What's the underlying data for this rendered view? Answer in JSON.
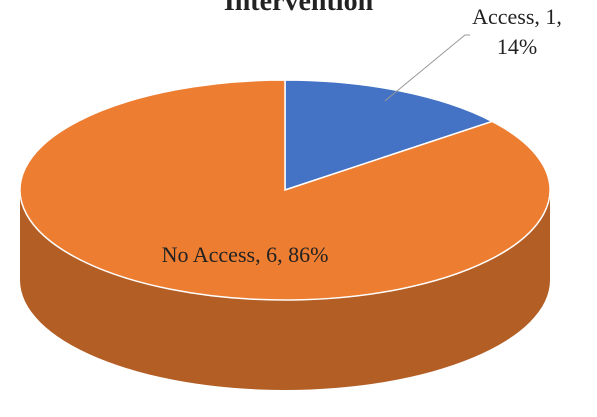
{
  "chart_data": {
    "type": "pie",
    "title": "Intervention",
    "categories": [
      "Access",
      "No Access"
    ],
    "values": [
      1,
      6
    ],
    "value_labels": [
      "Access, 1, 14%",
      "No Access, 6, 86%"
    ],
    "colors": [
      "#4472c4",
      "#ed7d31"
    ]
  }
}
